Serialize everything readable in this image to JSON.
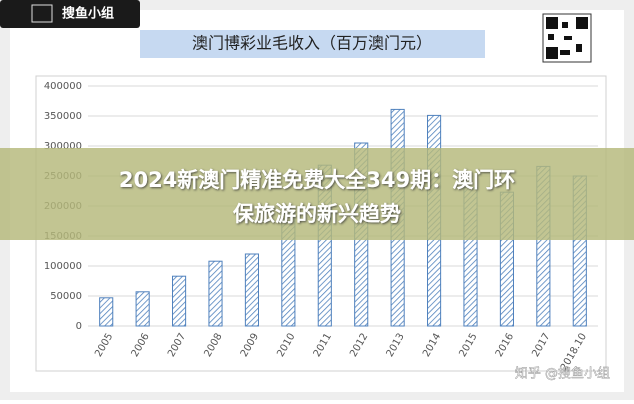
{
  "chart_data": {
    "type": "bar",
    "title": "澳门博彩业毛收入（百万澳门元）",
    "categories": [
      "2005",
      "2006",
      "2007",
      "2008",
      "2009",
      "2010",
      "2011",
      "2012",
      "2013",
      "2014",
      "2015",
      "2016",
      "2017",
      "2018.10"
    ],
    "values": [
      47000,
      57000,
      83000,
      108000,
      120000,
      188000,
      268000,
      305000,
      361000,
      351000,
      231000,
      223000,
      266000,
      250000
    ],
    "color": "#4f81bd",
    "ylim": [
      0,
      400000
    ],
    "yticks": [
      0,
      50000,
      100000,
      150000,
      200000,
      250000,
      300000,
      350000,
      400000
    ],
    "grid": true
  },
  "logo": "搜鱼小组",
  "banner": [
    "2024新澳门精准免费大全349期：澳门环",
    "保旅游的新兴趋势"
  ],
  "watermark": "知乎 @搜鱼小组"
}
